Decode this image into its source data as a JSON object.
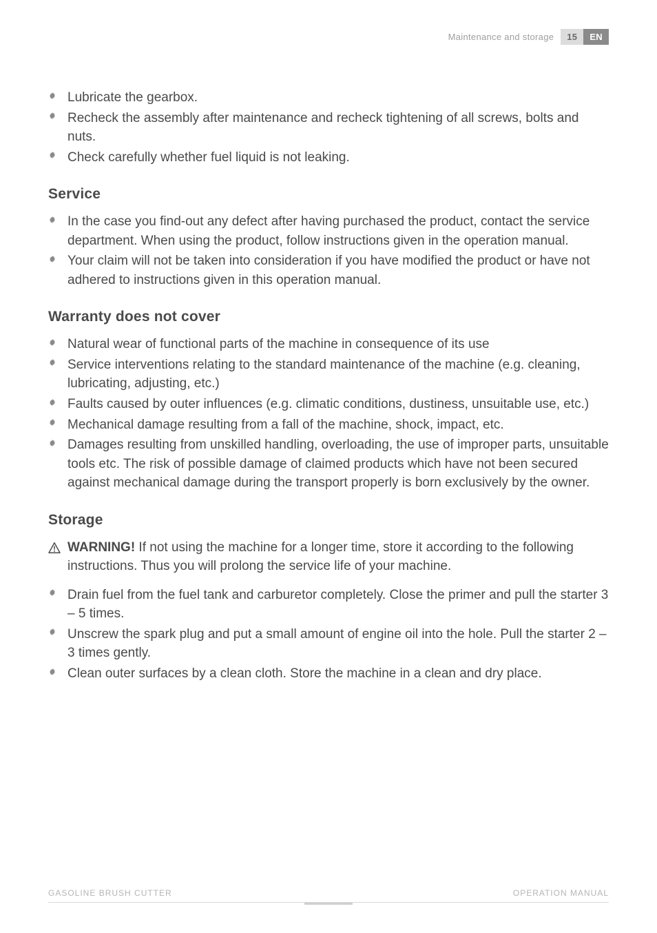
{
  "header": {
    "section": "Maintenance and storage",
    "pageNum": "15",
    "lang": "EN"
  },
  "blocks": [
    {
      "type": "bullets",
      "items": [
        "Lubricate the gearbox.",
        "Recheck the assembly after maintenance and recheck tightening of all screws, bolts and nuts.",
        "Check carefully whether fuel liquid is not leaking."
      ]
    },
    {
      "type": "heading",
      "text": "Service"
    },
    {
      "type": "bullets",
      "items": [
        "In the case you find-out any defect after having purchased the product, contact the service department. When using the product, follow instructions given in the operation manual.",
        "Your claim will not be taken into consideration if you have modified the product or have not adhered to instructions given in this operation manual."
      ]
    },
    {
      "type": "heading",
      "text": "Warranty does not cover"
    },
    {
      "type": "bullets",
      "items": [
        "Natural wear of functional parts of the machine in consequence of its use",
        "Service interventions relating to the standard maintenance of the machine (e.g. cleaning, lubricating, adjusting, etc.)",
        "Faults caused by outer influences (e.g. climatic conditions, dustiness, unsuitable use, etc.)",
        "Mechanical damage resulting from a fall of the machine, shock, impact, etc.",
        "Damages resulting from unskilled handling, overloading, the use of improper parts, unsuitable tools etc. The risk of possible damage of claimed products which have not been secured against mechanical damage during the transport properly is born exclusively by the owner."
      ]
    },
    {
      "type": "heading",
      "text": "Storage"
    },
    {
      "type": "warning",
      "label": "WARNING!",
      "text": " If not using the machine for a longer time, store it according to the following instructions. Thus you will prolong the service life of your machine."
    },
    {
      "type": "bullets",
      "items": [
        "Drain fuel from the fuel tank and carburetor completely. Close the primer and pull the starter 3 – 5 times.",
        "Unscrew the spark plug and put a small amount of engine oil into the hole. Pull the starter 2 – 3 times gently.",
        "Clean outer surfaces by a clean cloth. Store the machine in a clean and dry place."
      ]
    }
  ],
  "footer": {
    "left": "GASOLINE BRUSH CUTTER",
    "right": "OPERATION MANUAL"
  },
  "style": {
    "bulletGlyph": "❋",
    "bulletColor": "#8a8a8a",
    "textColor": "#4a4a4a",
    "headerMutedColor": "#9e9e9e",
    "pageNumBg": "#dcdcdc",
    "langBg": "#8a8a8a",
    "bodyFontSize": 19,
    "headingFontSize": 21,
    "footerFontSize": 12
  }
}
